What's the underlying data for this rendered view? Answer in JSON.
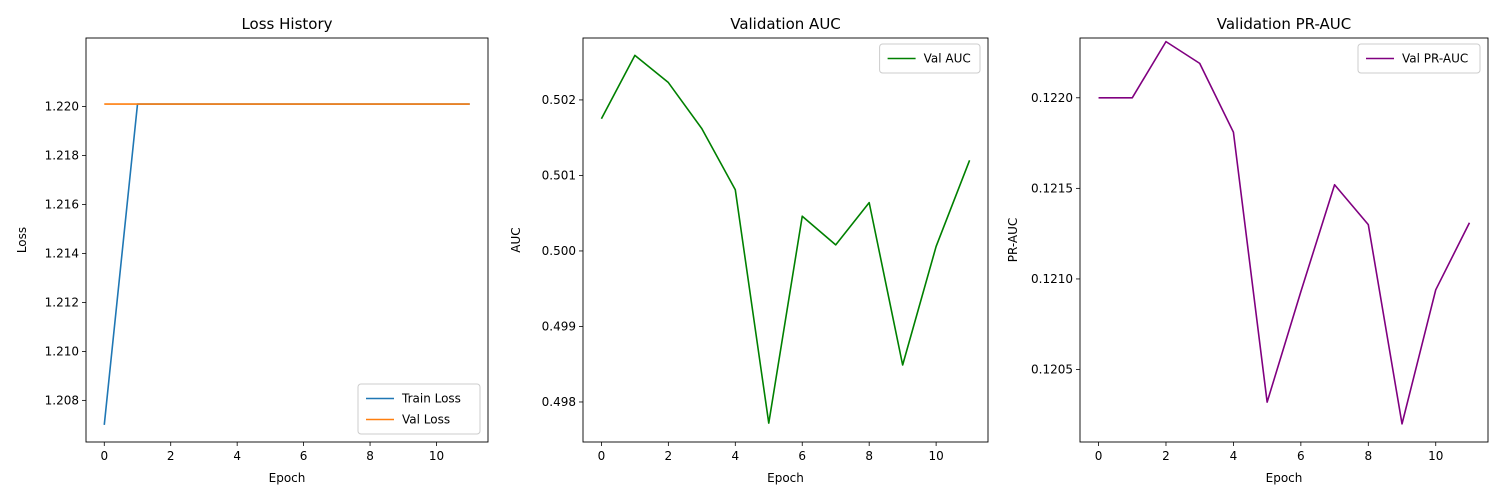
{
  "chart_data": [
    {
      "type": "line",
      "title": "Loss History",
      "xlabel": "Epoch",
      "ylabel": "Loss",
      "xlim": [
        -0.55,
        11.55
      ],
      "ylim": [
        1.2063,
        1.2228
      ],
      "xticks": [
        0,
        2,
        4,
        6,
        8,
        10
      ],
      "xtick_labels": [
        "0",
        "2",
        "4",
        "6",
        "8",
        "10"
      ],
      "yticks": [
        1.208,
        1.21,
        1.212,
        1.214,
        1.216,
        1.218,
        1.22
      ],
      "ytick_labels": [
        "1.208",
        "1.210",
        "1.212",
        "1.214",
        "1.216",
        "1.218",
        "1.220"
      ],
      "legend_position": "lower-right",
      "grid": false,
      "series": [
        {
          "name": "Train Loss",
          "color": "#1f77b4",
          "x": [
            0,
            1,
            2,
            3,
            4,
            5,
            6,
            7,
            8,
            9,
            10,
            11
          ],
          "values": [
            1.207,
            1.2201,
            1.2201,
            1.2201,
            1.2201,
            1.2201,
            1.2201,
            1.2201,
            1.2201,
            1.2201,
            1.2201,
            1.2201
          ]
        },
        {
          "name": "Val Loss",
          "color": "#ff7f0e",
          "x": [
            0,
            1,
            2,
            3,
            4,
            5,
            6,
            7,
            8,
            9,
            10,
            11
          ],
          "values": [
            1.2201,
            1.2201,
            1.2201,
            1.2201,
            1.2201,
            1.2201,
            1.2201,
            1.2201,
            1.2201,
            1.2201,
            1.2201,
            1.2201
          ]
        }
      ]
    },
    {
      "type": "line",
      "title": "Validation AUC",
      "xlabel": "Epoch",
      "ylabel": "AUC",
      "xlim": [
        -0.55,
        11.55
      ],
      "ylim": [
        0.49747,
        0.50282
      ],
      "xticks": [
        0,
        2,
        4,
        6,
        8,
        10
      ],
      "xtick_labels": [
        "0",
        "2",
        "4",
        "6",
        "8",
        "10"
      ],
      "yticks": [
        0.498,
        0.499,
        0.5,
        0.501,
        0.502
      ],
      "ytick_labels": [
        "0.498",
        "0.499",
        "0.500",
        "0.501",
        "0.502"
      ],
      "legend_position": "upper-right",
      "grid": false,
      "series": [
        {
          "name": "Val AUC",
          "color": "#008000",
          "x": [
            0,
            1,
            2,
            3,
            4,
            5,
            6,
            7,
            8,
            9,
            10,
            11
          ],
          "values": [
            0.50175,
            0.50259,
            0.50223,
            0.50162,
            0.50081,
            0.49772,
            0.50046,
            0.50008,
            0.50064,
            0.49849,
            0.50006,
            0.5012
          ]
        }
      ]
    },
    {
      "type": "line",
      "title": "Validation PR-AUC",
      "xlabel": "Epoch",
      "ylabel": "PR-AUC",
      "xlim": [
        -0.55,
        11.55
      ],
      "ylim": [
        0.1201,
        0.12233
      ],
      "xticks": [
        0,
        2,
        4,
        6,
        8,
        10
      ],
      "xtick_labels": [
        "0",
        "2",
        "4",
        "6",
        "8",
        "10"
      ],
      "yticks": [
        0.1205,
        0.121,
        0.1215,
        0.122
      ],
      "ytick_labels": [
        "0.1205",
        "0.1210",
        "0.1215",
        "0.1220"
      ],
      "legend_position": "upper-right",
      "grid": false,
      "series": [
        {
          "name": "Val PR-AUC",
          "color": "#800080",
          "x": [
            0,
            1,
            2,
            3,
            4,
            5,
            6,
            7,
            8,
            9,
            10,
            11
          ],
          "values": [
            0.122,
            0.122,
            0.12231,
            0.12219,
            0.12181,
            0.12032,
            0.12093,
            0.12152,
            0.1213,
            0.1202,
            0.12094,
            0.12131
          ]
        }
      ]
    }
  ]
}
